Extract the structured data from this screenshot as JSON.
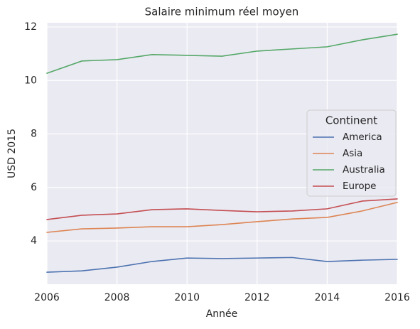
{
  "chart_data": {
    "type": "line",
    "title": "Salaire minimum réel moyen",
    "x_label": "Année",
    "y_label": "USD 2015",
    "legend_title": "Continent",
    "legend_position": "right",
    "x": [
      2006,
      2007,
      2008,
      2009,
      2010,
      2011,
      2012,
      2013,
      2014,
      2015,
      2016
    ],
    "series": [
      {
        "name": "America",
        "color": "#4c72b0",
        "values": [
          2.83,
          2.88,
          3.02,
          3.23,
          3.36,
          3.34,
          3.36,
          3.38,
          3.23,
          3.28,
          3.31
        ]
      },
      {
        "name": "Asia",
        "color": "#dd8452",
        "values": [
          4.32,
          4.45,
          4.48,
          4.53,
          4.53,
          4.61,
          4.72,
          4.82,
          4.88,
          5.12,
          5.44
        ]
      },
      {
        "name": "Australia",
        "color": "#55a868",
        "values": [
          10.27,
          10.73,
          10.78,
          10.97,
          10.94,
          10.91,
          11.1,
          11.18,
          11.26,
          11.52,
          11.73
        ]
      },
      {
        "name": "Europe",
        "color": "#c44e52",
        "values": [
          4.8,
          4.96,
          5.01,
          5.17,
          5.2,
          5.14,
          5.09,
          5.12,
          5.2,
          5.49,
          5.57
        ]
      }
    ],
    "xlim": [
      2006,
      2016
    ],
    "xticks": [
      2006,
      2008,
      2010,
      2012,
      2014,
      2016
    ],
    "ylim": [
      2.38,
      12.16
    ],
    "yticks": [
      4,
      6,
      8,
      10,
      12
    ],
    "grid": true
  }
}
